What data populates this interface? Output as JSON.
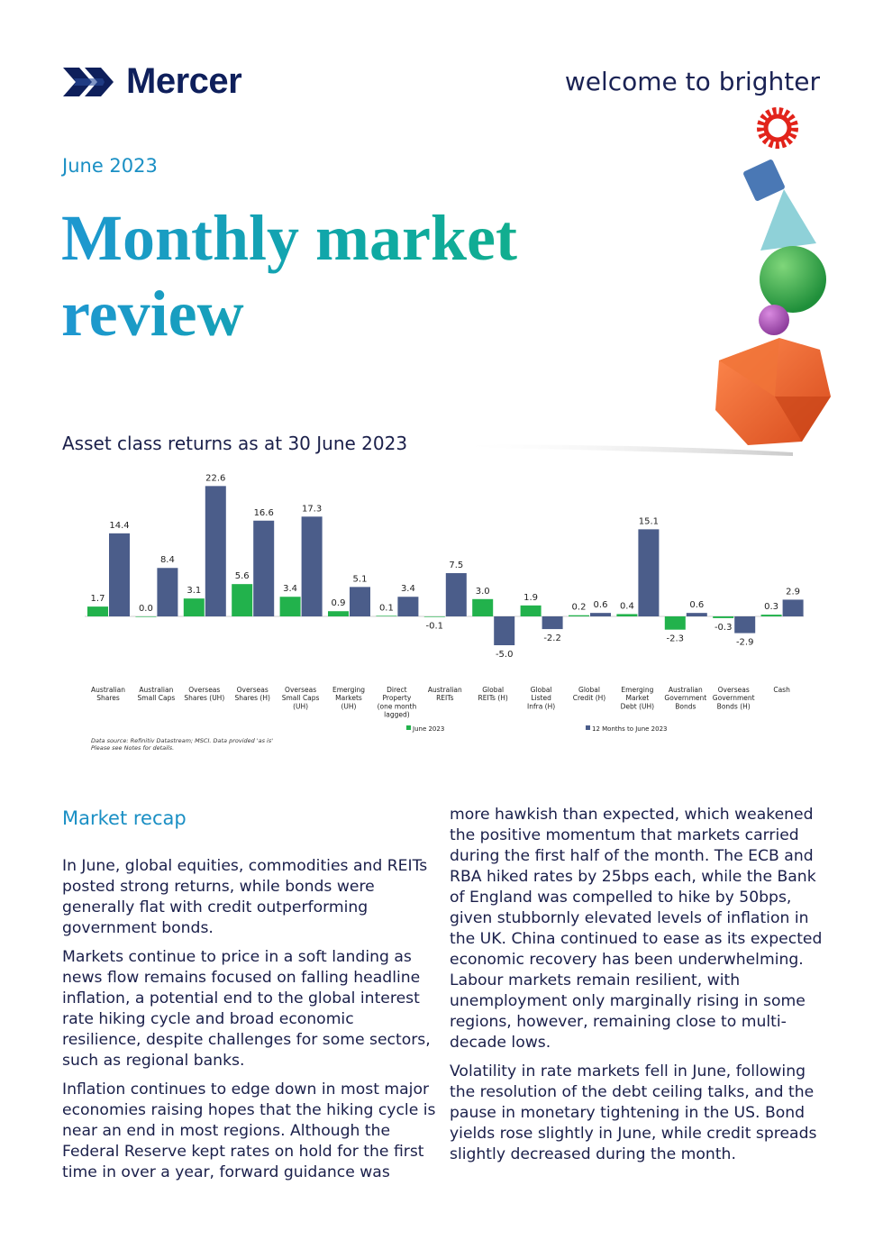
{
  "brand": {
    "name": "Mercer",
    "tagline": "welcome to brighter"
  },
  "header": {
    "date": "June 2023",
    "title": "Monthly market review"
  },
  "colors": {
    "accent_blue": "#1a8fc4",
    "navy": "#0e1f5b",
    "series_june": "#22b24c",
    "series_12m": "#4b5d8a"
  },
  "chart_data": {
    "type": "bar",
    "title": "Asset class returns as at 30 June 2023",
    "categories": [
      [
        "Australian",
        "Shares"
      ],
      [
        "Australian",
        "Small Caps"
      ],
      [
        "Overseas",
        "Shares (UH)"
      ],
      [
        "Overseas",
        "Shares (H)"
      ],
      [
        "Overseas",
        "Small Caps",
        "(UH)"
      ],
      [
        "Emerging",
        "Markets",
        "(UH)"
      ],
      [
        "Direct",
        "Property",
        "(one month",
        "lagged)"
      ],
      [
        "Australian",
        "REITs"
      ],
      [
        "Global",
        "REITs (H)"
      ],
      [
        "Global",
        "Listed",
        "Infra (H)"
      ],
      [
        "Global",
        "Credit (H)"
      ],
      [
        "Emerging",
        "Market",
        "Debt (UH)"
      ],
      [
        "Australian",
        "Government",
        "Bonds"
      ],
      [
        "Overseas",
        "Government",
        "Bonds (H)"
      ],
      [
        "Cash"
      ]
    ],
    "series": [
      {
        "name": "June 2023",
        "color": "#22b24c",
        "values": [
          1.7,
          0.0,
          3.1,
          5.6,
          3.4,
          0.9,
          0.1,
          -0.1,
          3.0,
          1.9,
          0.2,
          0.4,
          -2.3,
          -0.3,
          0.3
        ]
      },
      {
        "name": "12 Months to June 2023",
        "color": "#4b5d8a",
        "values": [
          14.4,
          8.4,
          22.6,
          16.6,
          17.3,
          5.1,
          3.4,
          7.5,
          -5.0,
          -2.2,
          0.6,
          15.1,
          0.6,
          -2.9,
          2.9
        ]
      }
    ],
    "legend": "bottom",
    "grid": false,
    "source": [
      "Data source: Refinitiv Datastream; MSCI. Data provided 'as is'",
      "Please see Notes for details."
    ]
  },
  "recap": {
    "heading": "Market recap",
    "col1": [
      "In June, global equities, commodities and REITs posted strong returns, while bonds were generally flat with credit outperforming government bonds.",
      "Markets continue to price in a soft landing as news flow remains focused on falling headline inflation, a potential end to the global interest rate hiking cycle and broad economic resilience, despite challenges for some sectors, such as regional banks.",
      "Inflation continues to edge down in most major economies raising hopes that the hiking cycle is near an end in most regions. Although the Federal Reserve kept rates on hold for the first time in over a year, forward guidance was"
    ],
    "col2": [
      "more hawkish than expected, which weakened the positive momentum that markets carried during the first half of the month. The ECB and RBA hiked rates by 25bps each, while the Bank of England was compelled to hike by 50bps, given stubbornly elevated levels of inflation in the UK. China continued to ease as its expected economic recovery has been underwhelming. Labour markets remain resilient, with unemployment only marginally rising in some regions, however, remaining close to multi-decade lows.",
      "Volatility in rate markets fell in June, following the resolution of the debt ceiling talks, and the pause in monetary tightening in the US. Bond yields rose slightly in June, while credit spreads slightly decreased during the month."
    ]
  }
}
